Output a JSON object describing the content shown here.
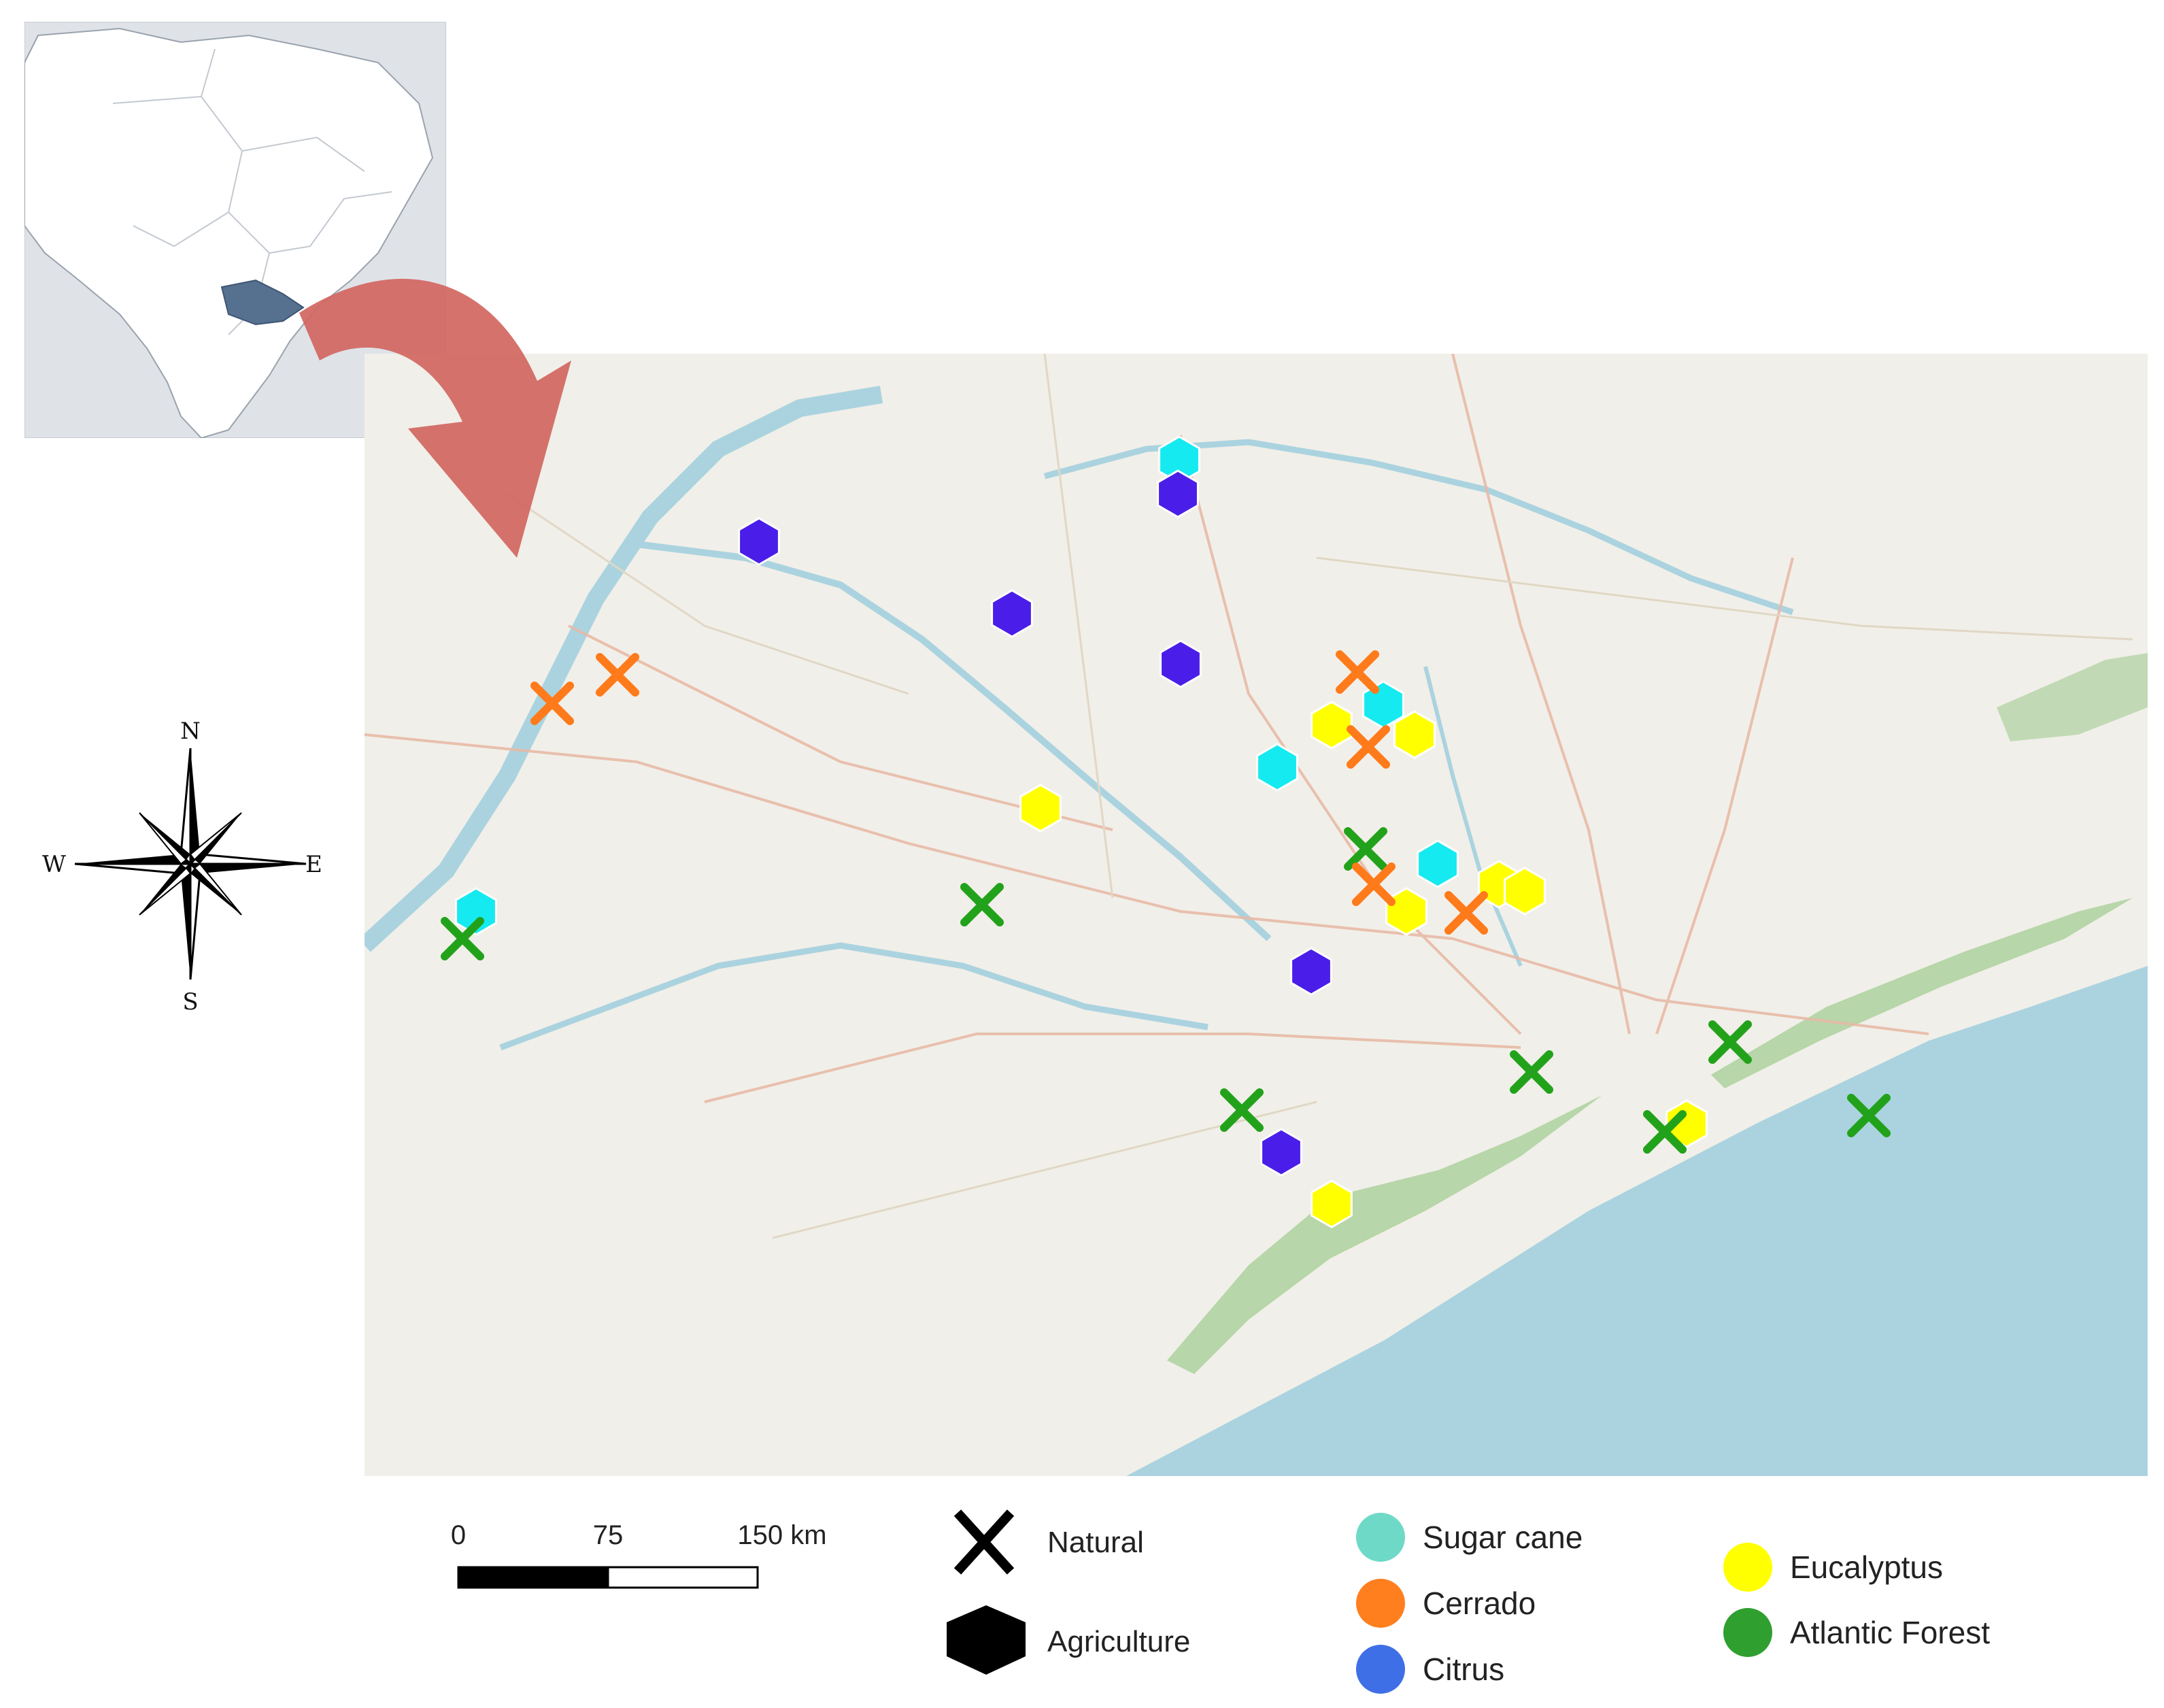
{
  "compass": {
    "n": "N",
    "s": "S",
    "e": "E",
    "w": "W"
  },
  "scale_bar": {
    "ticks": [
      "0",
      "75",
      "150 km"
    ]
  },
  "legend_symbols": [
    {
      "label": "Natural",
      "shape": "x-cross"
    },
    {
      "label": "Agriculture",
      "shape": "hexagon"
    }
  ],
  "legend_categories": [
    {
      "label": "Sugar cane",
      "color": "#6fd9c8"
    },
    {
      "label": "Cerrado",
      "color": "#ff7f1f"
    },
    {
      "label": "Citrus",
      "color": "#3f6fe6"
    },
    {
      "label": "Eucalyptus",
      "color": "#ffff00"
    },
    {
      "label": "Atlantic Forest",
      "color": "#2f9f2f"
    }
  ],
  "marker_colors": {
    "sugar_cane": "#15eaf0",
    "cerrado": "#ff7a1a",
    "citrus": "#4a1ee8",
    "eucalyptus": "#ffff00",
    "atlantic_forest": "#22a21b"
  },
  "map_colors": {
    "land": "#f1efe9",
    "sea": "#aad3df",
    "forest": "#add19e",
    "inset_land": "#ffffff",
    "inset_bg": "#dfe3e8",
    "inset_highlight": "#56708f",
    "arrow": "#d1665f"
  }
}
